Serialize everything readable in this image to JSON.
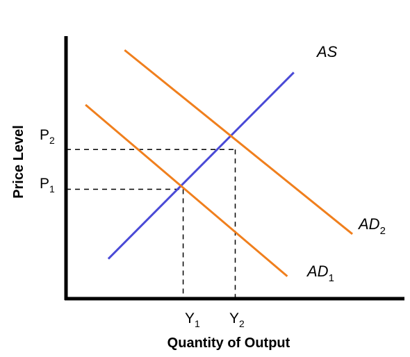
{
  "chart_data": {
    "type": "line",
    "title": "",
    "xlabel": "Quantity of Output",
    "ylabel": "Price Level",
    "grid": false,
    "series": [
      {
        "name": "AS",
        "color": "#4a4ad6",
        "points": [
          [
            0.65,
            0.8
          ],
          [
            3.5,
            4.55
          ]
        ]
      },
      {
        "name": "AD₁",
        "color": "#f07f1d",
        "points": [
          [
            0.3,
            3.9
          ],
          [
            3.4,
            0.45
          ]
        ]
      },
      {
        "name": "AD₂",
        "color": "#f07f1d",
        "points": [
          [
            0.9,
            5.0
          ],
          [
            4.4,
            1.3
          ]
        ]
      }
    ],
    "equilibria": [
      {
        "x": 1.8,
        "y": 2.2
      },
      {
        "x": 2.6,
        "y": 3.0
      }
    ],
    "x_ticks": [
      {
        "value": 1.8,
        "main": "Y",
        "sub": "1"
      },
      {
        "value": 2.6,
        "main": "Y",
        "sub": "2"
      }
    ],
    "y_ticks": [
      {
        "value": 2.2,
        "main": "P",
        "sub": "1"
      },
      {
        "value": 3.0,
        "main": "P",
        "sub": "2"
      }
    ],
    "curve_labels": {
      "as": {
        "main": "AS",
        "sub": ""
      },
      "ad1": {
        "main": "AD",
        "sub": "1"
      },
      "ad2": {
        "main": "AD",
        "sub": "2"
      }
    },
    "xlim": [
      0,
      5.2
    ],
    "ylim": [
      0,
      5.7
    ]
  }
}
